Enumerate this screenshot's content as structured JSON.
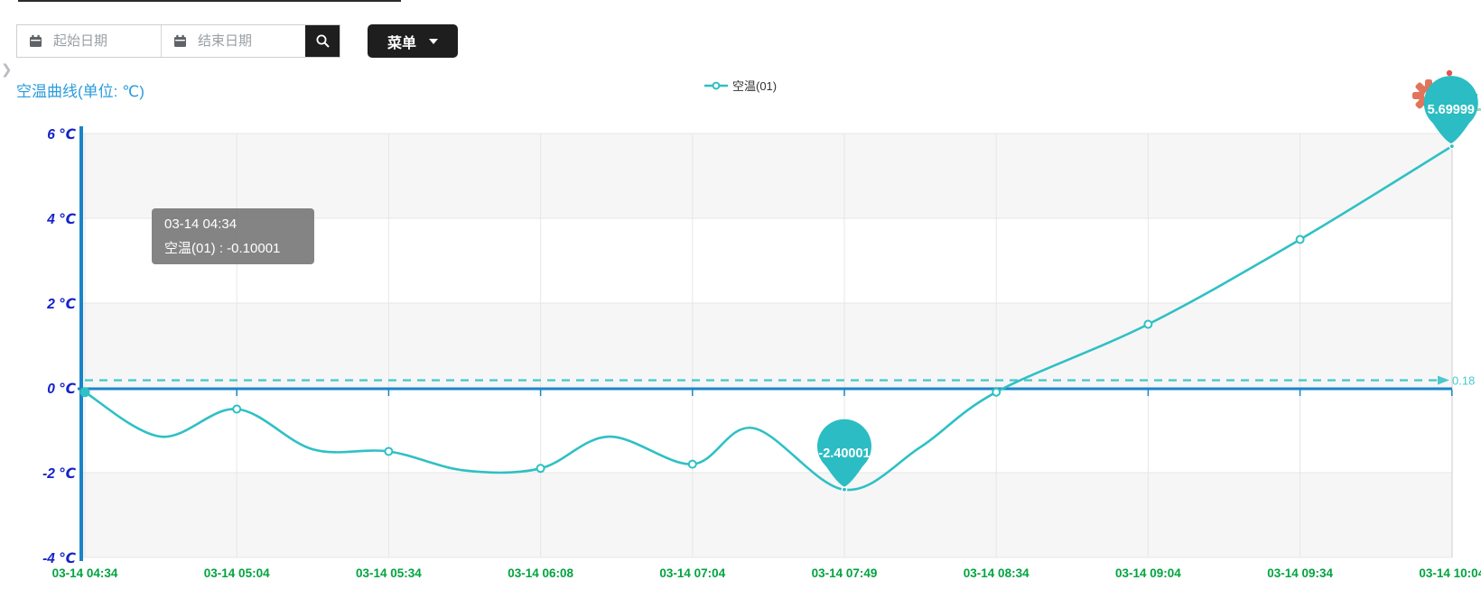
{
  "sidebar_toggle": {
    "glyph": "❯"
  },
  "toolbar": {
    "start_date": {
      "placeholder": "起始日期",
      "value": ""
    },
    "end_date": {
      "placeholder": "结束日期",
      "value": ""
    },
    "menu_button": {
      "label": "菜单"
    },
    "icons": [
      "calendar-icon",
      "calendar-icon",
      "search-icon",
      "caret-down-icon"
    ]
  },
  "chart": {
    "title": "空温曲线(单位: ℃)",
    "legend": {
      "label": "空温(01)"
    },
    "tooltip": {
      "title": "03-14 04:34",
      "value_line": "空温(01) : -0.10001"
    },
    "toolbox_icons": [
      "gear-icon",
      "bar-chart-icon"
    ]
  },
  "chart_data": {
    "type": "line",
    "title": "空温曲线(单位: ℃)",
    "smooth": true,
    "legend_position": "top-center",
    "grid": true,
    "categories": [
      "03-14 04:34",
      "03-14 05:04",
      "03-14 05:34",
      "03-14 06:08",
      "03-14 07:04",
      "03-14 07:49",
      "03-14 08:34",
      "03-14 09:04",
      "03-14 09:34",
      "03-14 10:04"
    ],
    "series": [
      {
        "name": "空温(01)",
        "values": [
          -0.10001,
          -0.5,
          -1.5,
          -1.9,
          -1.8,
          -2.40001,
          -0.1,
          1.5,
          3.5,
          5.69999
        ]
      }
    ],
    "curve_samples": [
      [
        0,
        -0.10001
      ],
      [
        0.5,
        -1.15
      ],
      [
        1,
        -0.5
      ],
      [
        1.5,
        -1.45
      ],
      [
        2,
        -1.5
      ],
      [
        2.5,
        -1.95
      ],
      [
        3,
        -1.9
      ],
      [
        3.45,
        -1.15
      ],
      [
        4,
        -1.8
      ],
      [
        4.4,
        -0.95
      ],
      [
        5,
        -2.40001
      ],
      [
        5.5,
        -1.4
      ],
      [
        6,
        -0.1
      ],
      [
        7,
        1.5
      ],
      [
        8,
        3.5
      ],
      [
        9,
        5.69999
      ]
    ],
    "y_axis": {
      "labels": [
        "6 ℃",
        "4 ℃",
        "2 ℃",
        "0 ℃",
        "-2 ℃",
        "-4 ℃"
      ],
      "min": -4,
      "max": 6,
      "step": 2
    },
    "mark_line": {
      "value": 0.18,
      "label": "0.18",
      "style": "dashed"
    },
    "point_labels": [
      {
        "index": 5,
        "text": "-2.40001",
        "kind": "min"
      },
      {
        "index": 9,
        "text": "5.69999",
        "kind": "max"
      }
    ],
    "colors": {
      "series": "#2fc0c5",
      "balloon": "#2bbdc3",
      "dashed": "#4cc8cc",
      "axis_blue": "#1b84c9",
      "y_label": "#1522c9",
      "x_label": "#00a43f",
      "band": "#f6f6f6",
      "gridline": "#e7e7e7",
      "title": "#2b9cdb",
      "gear": "#e0755c",
      "bars_icon": "#3cb96d",
      "bars_baseline": "#9bdcab",
      "red_dot": "#e0564a"
    }
  }
}
